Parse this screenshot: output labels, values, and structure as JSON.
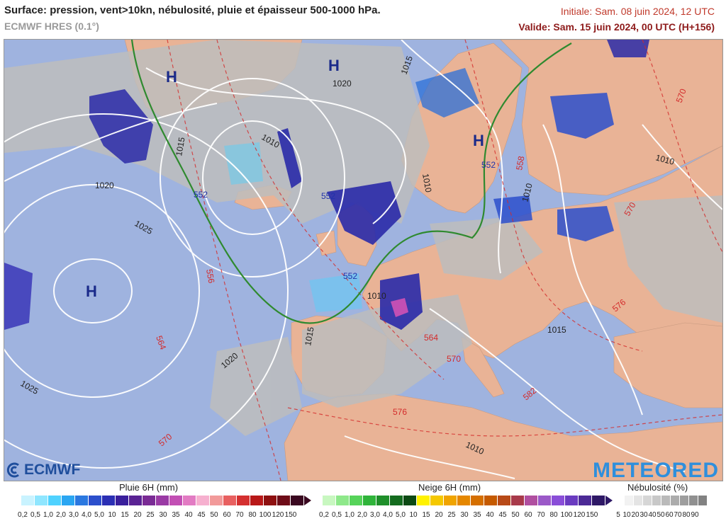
{
  "header": {
    "title": "Surface: pression, vent>10kn, nébulosité, pluie et épaisseur 500-1000 hPa.",
    "model": "ECMWF HRES (0.1°)",
    "init": "Initiale: Sam. 08 juin 2024, 12 UTC",
    "valid": "Valide: Sam. 15 juin 2024, 00 UTC (H+156)"
  },
  "map": {
    "high_label": "H",
    "isobar_labels": [
      "1020",
      "1015",
      "1010",
      "1015",
      "1010",
      "1020",
      "1025",
      "1020",
      "1025",
      "1010",
      "1010",
      "1015",
      "1015",
      "1010",
      "1010"
    ],
    "thickness_labels": [
      "552",
      "552",
      "552",
      "552",
      "558",
      "556",
      "564",
      "564",
      "570",
      "570",
      "570",
      "576",
      "576",
      "582",
      "570"
    ]
  },
  "colors": {
    "sea": "#9fb3df",
    "land": "#e9b396",
    "cloud": "#bcbcbc",
    "rain_heavy": "#2a2aa8",
    "front": "#2f8a2f",
    "thickness": "#d42b2b",
    "isobar": "#ffffff"
  },
  "logos": {
    "ecmwf": "ECMWF",
    "meteored": "METEORED"
  },
  "legends": {
    "rain": {
      "title": "Pluie 6H (mm)",
      "labels": [
        "0,2",
        "0,5",
        "1,0",
        "2,0",
        "3,0",
        "4,0",
        "5,0",
        "10",
        "15",
        "20",
        "25",
        "30",
        "35",
        "40",
        "45",
        "50",
        "60",
        "70",
        "80",
        "100",
        "120",
        "150"
      ],
      "colors": [
        "#c9f3ff",
        "#8fe6ff",
        "#4fd2ff",
        "#2aa6f2",
        "#2b78e0",
        "#2c4fcc",
        "#2b2fb4",
        "#3a1f9c",
        "#5a2394",
        "#7a2b95",
        "#9a3aa5",
        "#c24fb4",
        "#e27bc3",
        "#f6b0cf",
        "#f29a9a",
        "#e86060",
        "#d43030",
        "#b81818",
        "#8e1010",
        "#6e0c18",
        "#3a0820"
      ]
    },
    "snow": {
      "title": "Neige 6H (mm)",
      "labels": [
        "0,2",
        "0,5",
        "1,0",
        "2,0",
        "3,0",
        "4,0",
        "5,0",
        "10",
        "15",
        "20",
        "25",
        "30",
        "35",
        "40",
        "45",
        "50",
        "60",
        "70",
        "80",
        "100",
        "120",
        "150"
      ],
      "colors": [
        "#c8f7c0",
        "#8ee88a",
        "#56d35a",
        "#2fb43a",
        "#1f8f2a",
        "#146c1f",
        "#0c4a14",
        "#fff200",
        "#f5c800",
        "#f0a400",
        "#e58700",
        "#d56f00",
        "#c55a00",
        "#b84a18",
        "#a83a4a",
        "#b04fa0",
        "#9b59c8",
        "#8a4ed8",
        "#6a3bc0",
        "#4c2a96",
        "#2e1866"
      ]
    },
    "cloud": {
      "title": "Nébulosité (%)",
      "labels": [
        "5",
        "10",
        "20",
        "30",
        "40",
        "50",
        "60",
        "70",
        "80",
        "90"
      ],
      "colors": [
        "#ffffff",
        "#f2f2f2",
        "#e4e4e4",
        "#d6d6d6",
        "#c8c8c8",
        "#bababa",
        "#acacac",
        "#9e9e9e",
        "#909090",
        "#828282"
      ]
    }
  }
}
